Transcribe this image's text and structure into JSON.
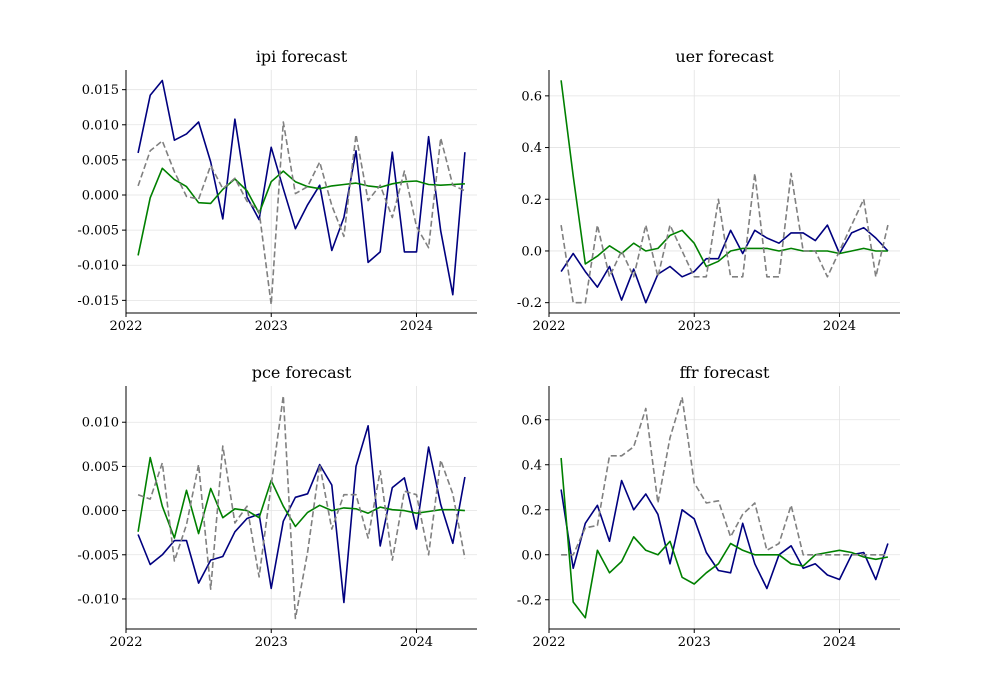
{
  "colors": {
    "actual": "#00007f",
    "model": "#008000",
    "benchmark": "#808080",
    "grid": "#e3e3e3"
  },
  "chart_data": [
    {
      "type": "line",
      "title": "ipi forecast",
      "xlabel": "",
      "ylabel": "",
      "x_ticks": [
        "2022",
        "2023",
        "2024"
      ],
      "y_ticks": [
        "0.015",
        "0.010",
        "0.005",
        "0.000",
        "-0.005",
        "-0.010",
        "-0.015"
      ],
      "xlim": [
        "2022-01",
        "2024-06"
      ],
      "ylim": [
        -0.0168,
        0.0178
      ],
      "grid": true,
      "x": [
        "2022-02",
        "2022-03",
        "2022-04",
        "2022-05",
        "2022-06",
        "2022-07",
        "2022-08",
        "2022-09",
        "2022-10",
        "2022-11",
        "2022-12",
        "2023-01",
        "2023-02",
        "2023-03",
        "2023-04",
        "2023-05",
        "2023-06",
        "2023-07",
        "2023-08",
        "2023-09",
        "2023-10",
        "2023-11",
        "2023-12",
        "2024-01",
        "2024-02",
        "2024-03",
        "2024-04",
        "2024-05"
      ],
      "series": [
        {
          "style": "solid",
          "color": "#00007f",
          "values": [
            0.006,
            0.0142,
            0.0163,
            0.0078,
            0.0087,
            0.0104,
            0.0047,
            -0.0034,
            0.0108,
            -0.0003,
            -0.0035,
            0.0068,
            0.0009,
            -0.0048,
            -0.0014,
            0.0014,
            -0.0079,
            -0.0032,
            0.0063,
            -0.0096,
            -0.0081,
            0.0061,
            -0.0081,
            -0.0081,
            0.0083,
            -0.0051,
            -0.0142,
            0.0061
          ]
        },
        {
          "style": "solid",
          "color": "#008000",
          "values": [
            -0.0086,
            -0.0004,
            0.0038,
            0.0022,
            0.0012,
            -0.0011,
            -0.0012,
            0.0008,
            0.0023,
            0.0006,
            -0.0026,
            0.0019,
            0.0034,
            0.0019,
            0.0012,
            0.0009,
            0.0013,
            0.0015,
            0.0017,
            0.0013,
            0.0011,
            0.0016,
            0.0019,
            0.002,
            0.0015,
            0.0014,
            0.0015,
            0.0016
          ]
        },
        {
          "style": "dashed",
          "color": "#808080",
          "values": [
            0.0013,
            0.0063,
            0.0077,
            0.0033,
            -0.0002,
            -0.0006,
            0.0042,
            0.0009,
            0.0024,
            -0.0009,
            -0.0023,
            -0.0156,
            0.0104,
            0.0002,
            0.0012,
            0.0047,
            -0.0015,
            -0.0059,
            0.0086,
            -0.0008,
            0.0014,
            -0.0032,
            0.0034,
            -0.0045,
            -0.0075,
            0.0081,
            0.0014,
            0.0006
          ]
        }
      ]
    },
    {
      "type": "line",
      "title": "uer forecast",
      "xlabel": "",
      "ylabel": "",
      "x_ticks": [
        "2022",
        "2023",
        "2024"
      ],
      "y_ticks": [
        "0.6",
        "0.4",
        "0.2",
        "0.0",
        "-0.2"
      ],
      "xlim": [
        "2022-01",
        "2024-06"
      ],
      "ylim": [
        -0.24,
        0.7
      ],
      "grid": true,
      "x": [
        "2022-02",
        "2022-03",
        "2022-04",
        "2022-05",
        "2022-06",
        "2022-07",
        "2022-08",
        "2022-09",
        "2022-10",
        "2022-11",
        "2022-12",
        "2023-01",
        "2023-02",
        "2023-03",
        "2023-04",
        "2023-05",
        "2023-06",
        "2023-07",
        "2023-08",
        "2023-09",
        "2023-10",
        "2023-11",
        "2023-12",
        "2024-01",
        "2024-02",
        "2024-03",
        "2024-04",
        "2024-05"
      ],
      "series": [
        {
          "style": "solid",
          "color": "#00007f",
          "values": [
            -0.08,
            -0.01,
            -0.08,
            -0.14,
            -0.06,
            -0.19,
            -0.07,
            -0.2,
            -0.09,
            -0.06,
            -0.1,
            -0.08,
            -0.03,
            -0.03,
            0.08,
            -0.01,
            0.08,
            0.05,
            0.03,
            0.07,
            0.07,
            0.04,
            0.1,
            -0.01,
            0.07,
            0.09,
            0.05,
            0.0
          ]
        },
        {
          "style": "solid",
          "color": "#008000",
          "values": [
            0.66,
            0.29,
            -0.05,
            -0.02,
            0.02,
            -0.01,
            0.03,
            0.0,
            0.01,
            0.06,
            0.08,
            0.03,
            -0.06,
            -0.04,
            0.0,
            0.01,
            0.01,
            0.01,
            0.0,
            0.01,
            0.0,
            0.0,
            0.0,
            -0.01,
            0.0,
            0.01,
            0.0,
            0.0
          ]
        },
        {
          "style": "dashed",
          "color": "#808080",
          "values": [
            0.1,
            -0.2,
            -0.2,
            0.1,
            -0.1,
            0.0,
            -0.1,
            0.1,
            -0.1,
            0.1,
            0.0,
            -0.1,
            -0.1,
            0.2,
            -0.1,
            -0.1,
            0.3,
            -0.1,
            -0.1,
            0.3,
            0.0,
            0.0,
            -0.1,
            0.0,
            0.1,
            0.2,
            -0.1,
            0.1
          ]
        }
      ]
    },
    {
      "type": "line",
      "title": "pce forecast",
      "xlabel": "",
      "ylabel": "",
      "x_ticks": [
        "2022",
        "2023",
        "2024"
      ],
      "y_ticks": [
        "0.010",
        "0.005",
        "0.000",
        "-0.005",
        "-0.010"
      ],
      "xlim": [
        "2022-01",
        "2024-06"
      ],
      "ylim": [
        -0.0134,
        0.0141
      ],
      "grid": true,
      "x": [
        "2022-02",
        "2022-03",
        "2022-04",
        "2022-05",
        "2022-06",
        "2022-07",
        "2022-08",
        "2022-09",
        "2022-10",
        "2022-11",
        "2022-12",
        "2023-01",
        "2023-02",
        "2023-03",
        "2023-04",
        "2023-05",
        "2023-06",
        "2023-07",
        "2023-08",
        "2023-09",
        "2023-10",
        "2023-11",
        "2023-12",
        "2024-01",
        "2024-02",
        "2024-03",
        "2024-04",
        "2024-05"
      ],
      "series": [
        {
          "style": "solid",
          "color": "#00007f",
          "values": [
            -0.0027,
            -0.0061,
            -0.005,
            -0.0034,
            -0.0034,
            -0.0082,
            -0.0056,
            -0.0052,
            -0.0024,
            -0.0009,
            -0.0004,
            -0.0088,
            -0.0012,
            0.0015,
            0.0019,
            0.0052,
            0.0029,
            -0.0104,
            0.005,
            0.0096,
            -0.004,
            0.0026,
            0.0037,
            -0.0021,
            0.0072,
            0.0007,
            -0.0037,
            0.0038
          ]
        },
        {
          "style": "solid",
          "color": "#008000",
          "values": [
            -0.0024,
            0.006,
            0.0005,
            -0.0031,
            0.0023,
            -0.0026,
            0.0025,
            -0.0008,
            0.0002,
            0.0,
            -0.0008,
            0.0034,
            0.0005,
            -0.0018,
            -0.0002,
            0.0006,
            0.0,
            0.0003,
            0.0002,
            -0.0003,
            0.0004,
            0.0001,
            0.0,
            -0.0003,
            -0.0001,
            0.0001,
            0.0001,
            0.0
          ]
        },
        {
          "style": "dashed",
          "color": "#808080",
          "values": [
            0.0018,
            0.0013,
            0.0054,
            -0.0057,
            -0.0016,
            0.0052,
            -0.0089,
            0.0073,
            -0.0014,
            0.0005,
            -0.0075,
            0.0029,
            0.013,
            -0.0122,
            -0.0047,
            0.0052,
            -0.0021,
            0.0018,
            0.0018,
            -0.0031,
            0.0045,
            -0.0056,
            0.0022,
            0.0018,
            -0.005,
            0.0057,
            0.0019,
            -0.0054
          ]
        }
      ]
    },
    {
      "type": "line",
      "title": "ffr forecast",
      "xlabel": "",
      "ylabel": "",
      "x_ticks": [
        "2022",
        "2023",
        "2024"
      ],
      "y_ticks": [
        "0.6",
        "0.4",
        "0.2",
        "0.0",
        "-0.2"
      ],
      "xlim": [
        "2022-01",
        "2024-06"
      ],
      "ylim": [
        -0.33,
        0.75
      ],
      "grid": true,
      "x": [
        "2022-02",
        "2022-03",
        "2022-04",
        "2022-05",
        "2022-06",
        "2022-07",
        "2022-08",
        "2022-09",
        "2022-10",
        "2022-11",
        "2022-12",
        "2023-01",
        "2023-02",
        "2023-03",
        "2023-04",
        "2023-05",
        "2023-06",
        "2023-07",
        "2023-08",
        "2023-09",
        "2023-10",
        "2023-11",
        "2023-12",
        "2024-01",
        "2024-02",
        "2024-03",
        "2024-04",
        "2024-05"
      ],
      "series": [
        {
          "style": "solid",
          "color": "#00007f",
          "values": [
            0.29,
            -0.06,
            0.14,
            0.22,
            0.06,
            0.33,
            0.2,
            0.27,
            0.18,
            -0.04,
            0.2,
            0.16,
            0.01,
            -0.07,
            -0.08,
            0.14,
            -0.04,
            -0.15,
            0.0,
            0.04,
            -0.06,
            -0.04,
            -0.09,
            -0.11,
            0.0,
            0.01,
            -0.11,
            0.05
          ]
        },
        {
          "style": "solid",
          "color": "#008000",
          "values": [
            0.43,
            -0.21,
            -0.28,
            0.02,
            -0.08,
            -0.03,
            0.08,
            0.02,
            0.0,
            0.06,
            -0.1,
            -0.13,
            -0.08,
            -0.04,
            0.05,
            0.02,
            0.0,
            0.0,
            0.0,
            -0.04,
            -0.05,
            0.0,
            0.01,
            0.02,
            0.01,
            -0.01,
            -0.02,
            -0.01
          ]
        },
        {
          "style": "dashed",
          "color": "#808080",
          "values": [
            0.0,
            0.0,
            0.12,
            0.13,
            0.44,
            0.44,
            0.48,
            0.65,
            0.23,
            0.52,
            0.7,
            0.32,
            0.23,
            0.24,
            0.08,
            0.18,
            0.23,
            0.02,
            0.05,
            0.22,
            0.0,
            0.0,
            0.0,
            0.0,
            0.0,
            0.0,
            0.0,
            0.0
          ]
        }
      ]
    }
  ]
}
